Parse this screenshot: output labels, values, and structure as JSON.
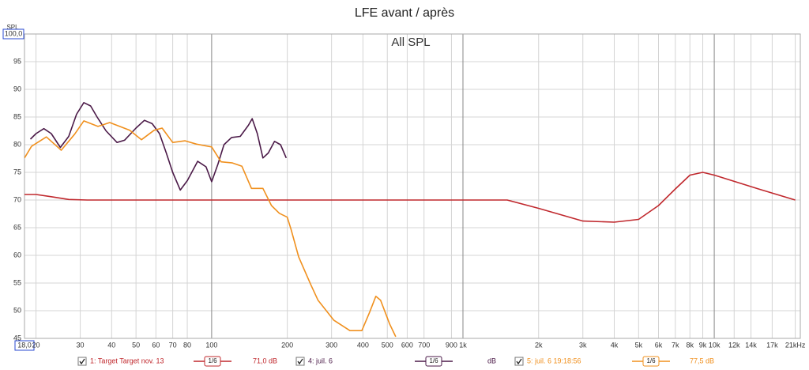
{
  "chart_data": {
    "type": "line",
    "title": "LFE avant / après",
    "subtitle": "All SPL",
    "y_label": "SPL",
    "x_scale": "log",
    "grid": true,
    "xlim": [
      18,
      22000
    ],
    "ylim": [
      45,
      100
    ],
    "xticks": [
      {
        "value": 18,
        "label": "18,0"
      },
      20,
      30,
      40,
      50,
      60,
      70,
      80,
      100,
      200,
      300,
      400,
      500,
      600,
      700,
      900,
      {
        "value": 1000,
        "label": "1k"
      },
      {
        "value": 2000,
        "label": "2k"
      },
      {
        "value": 3000,
        "label": "3k"
      },
      {
        "value": 4000,
        "label": "4k"
      },
      {
        "value": 5000,
        "label": "5k"
      },
      {
        "value": 6000,
        "label": "6k"
      },
      {
        "value": 7000,
        "label": "7k"
      },
      {
        "value": 8000,
        "label": "8k"
      },
      {
        "value": 9000,
        "label": "9k"
      },
      {
        "value": 10000,
        "label": "10k"
      },
      {
        "value": 12000,
        "label": "12k"
      },
      {
        "value": 14000,
        "label": "14k"
      },
      {
        "value": 17000,
        "label": "17k"
      },
      {
        "value": 21000,
        "label": "21kHz"
      }
    ],
    "yticks": [
      45,
      50,
      55,
      60,
      65,
      70,
      75,
      80,
      85,
      90,
      95,
      {
        "value": 100,
        "label": "100,0"
      }
    ],
    "series": [
      {
        "name": "1: Target Target nov. 13",
        "color": "#c0282d",
        "smoothing": "1/6",
        "readout": "71,0 dB",
        "x": [
          18,
          20,
          23,
          27,
          32,
          50,
          100,
          300,
          1000,
          1500,
          2000,
          3000,
          4000,
          5000,
          6000,
          7000,
          8000,
          9000,
          10000,
          15000,
          21000
        ],
        "values": [
          71,
          71,
          70.6,
          70.1,
          70,
          70,
          70,
          70,
          70,
          70,
          68.5,
          66.2,
          66,
          66.5,
          69,
          72,
          74.5,
          75,
          74.5,
          72,
          70
        ]
      },
      {
        "name": "4: juil. 6",
        "color": "#4b1a48",
        "smoothing": "1/6",
        "readout": "dB",
        "x": [
          19,
          20,
          21.5,
          23,
          25,
          27,
          29,
          31,
          33,
          35,
          38,
          42,
          45,
          50,
          54,
          58,
          62,
          66,
          70,
          75,
          80,
          88,
          95,
          100,
          106,
          112,
          120,
          130,
          140,
          145,
          152,
          160,
          168,
          178,
          188,
          198
        ],
        "values": [
          81,
          82,
          82.9,
          82,
          79.5,
          81.5,
          85.5,
          87.6,
          87,
          85,
          82.5,
          80.4,
          80.8,
          83,
          84.4,
          83.8,
          82,
          78.5,
          75,
          71.8,
          73.5,
          77,
          76,
          73.3,
          76.5,
          80,
          81.3,
          81.5,
          83.5,
          84.7,
          82,
          77.6,
          78.5,
          80.6,
          80,
          77.6
        ]
      },
      {
        "name": "5: juil. 6 19:18:56",
        "color": "#f0901e",
        "smoothing": "1/6",
        "readout": "77,5 dB",
        "x": [
          18,
          19.2,
          22,
          25.2,
          28.5,
          31,
          35.3,
          39.3,
          47.2,
          52.6,
          59,
          63.5,
          70,
          78.4,
          87,
          100,
          109,
          121,
          132,
          144,
          160,
          173,
          186,
          200,
          207,
          222,
          248,
          265,
          306,
          355,
          396,
          425,
          450,
          470,
          511,
          540
        ],
        "values": [
          77.6,
          79.7,
          81.4,
          79,
          81.9,
          84.3,
          83.3,
          84,
          82.6,
          80.9,
          82.6,
          83,
          80.4,
          80.7,
          80.1,
          79.6,
          76.9,
          76.7,
          76.1,
          72.1,
          72.1,
          69,
          67.6,
          66.9,
          64.7,
          59.7,
          54.7,
          51.9,
          48.3,
          46.4,
          46.4,
          49.7,
          52.6,
          51.9,
          47.6,
          45.3
        ]
      }
    ]
  }
}
